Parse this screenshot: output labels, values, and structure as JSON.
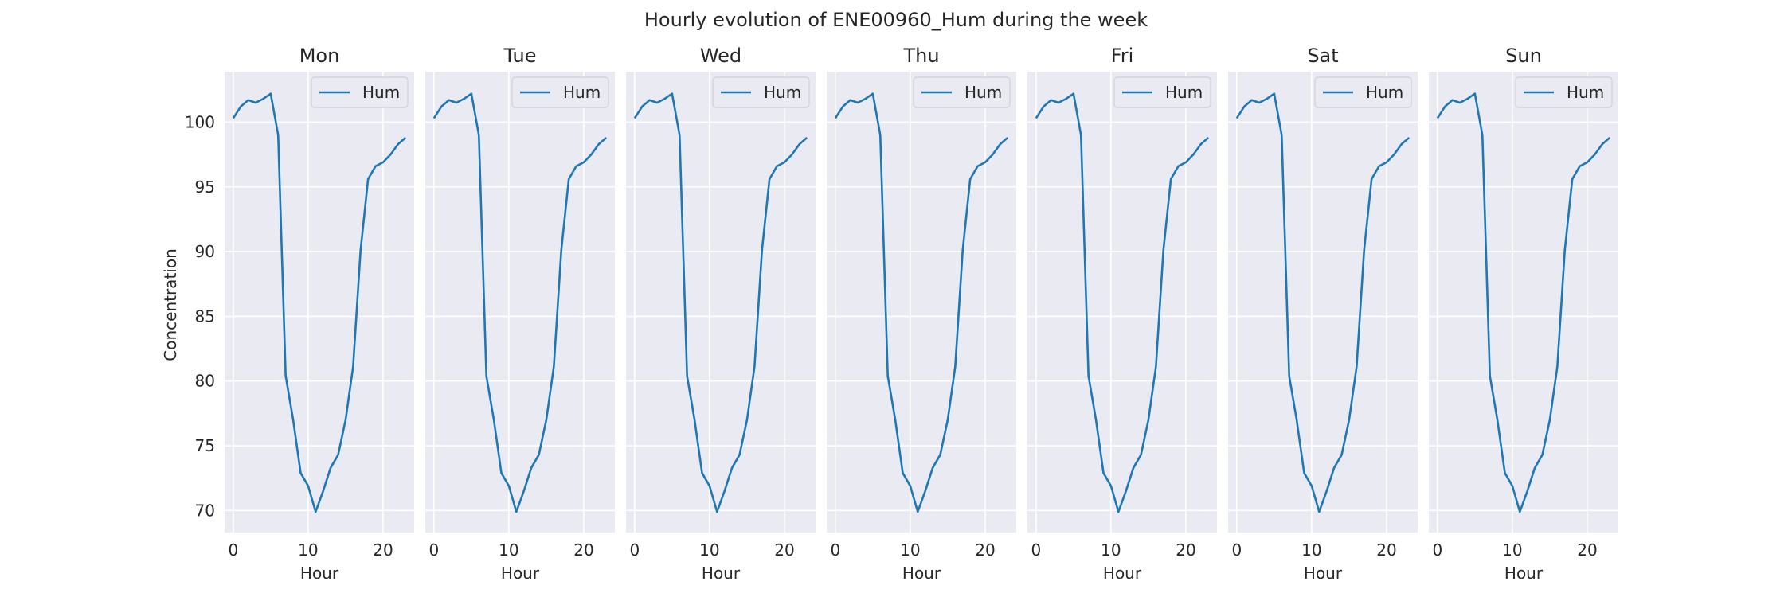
{
  "chart_data": {
    "type": "line",
    "title": "Hourly evolution of ENE00960_Hum during the week",
    "ylabel": "Concentration",
    "xlabel": "Hour",
    "x": [
      0,
      1,
      2,
      3,
      4,
      5,
      6,
      7,
      8,
      9,
      10,
      11,
      12,
      13,
      14,
      15,
      16,
      17,
      18,
      19,
      20,
      21,
      22,
      23
    ],
    "xlim": [
      -1.15,
      24.15
    ],
    "ylim": [
      68.3,
      103.9
    ],
    "xticks": [
      0,
      10,
      20
    ],
    "yticks": [
      70,
      75,
      80,
      85,
      90,
      95,
      100
    ],
    "grid": true,
    "legend_position": "top-right",
    "line_color": "#1f77b4",
    "background_color": "#eaeaf2",
    "panels": [
      {
        "title": "Mon",
        "series": [
          {
            "name": "Hum",
            "values": [
              100.3,
              101.2,
              101.7,
              101.5,
              101.8,
              102.2,
              99.0,
              80.4,
              77.0,
              72.9,
              71.9,
              69.9,
              71.5,
              73.3,
              74.3,
              77.0,
              81.1,
              90.1,
              95.6,
              96.6,
              96.9,
              97.5,
              98.3,
              98.8
            ]
          }
        ]
      },
      {
        "title": "Tue",
        "series": [
          {
            "name": "Hum",
            "values": [
              100.3,
              101.2,
              101.7,
              101.5,
              101.8,
              102.2,
              99.0,
              80.4,
              77.0,
              72.9,
              71.9,
              69.9,
              71.5,
              73.3,
              74.3,
              77.0,
              81.1,
              90.1,
              95.6,
              96.6,
              96.9,
              97.5,
              98.3,
              98.8
            ]
          }
        ]
      },
      {
        "title": "Wed",
        "series": [
          {
            "name": "Hum",
            "values": [
              100.3,
              101.2,
              101.7,
              101.5,
              101.8,
              102.2,
              99.0,
              80.4,
              77.0,
              72.9,
              71.9,
              69.9,
              71.5,
              73.3,
              74.3,
              77.0,
              81.1,
              90.1,
              95.6,
              96.6,
              96.9,
              97.5,
              98.3,
              98.8
            ]
          }
        ]
      },
      {
        "title": "Thu",
        "series": [
          {
            "name": "Hum",
            "values": [
              100.3,
              101.2,
              101.7,
              101.5,
              101.8,
              102.2,
              99.0,
              80.4,
              77.0,
              72.9,
              71.9,
              69.9,
              71.5,
              73.3,
              74.3,
              77.0,
              81.1,
              90.1,
              95.6,
              96.6,
              96.9,
              97.5,
              98.3,
              98.8
            ]
          }
        ]
      },
      {
        "title": "Fri",
        "series": [
          {
            "name": "Hum",
            "values": [
              100.3,
              101.2,
              101.7,
              101.5,
              101.8,
              102.2,
              99.0,
              80.4,
              77.0,
              72.9,
              71.9,
              69.9,
              71.5,
              73.3,
              74.3,
              77.0,
              81.1,
              90.1,
              95.6,
              96.6,
              96.9,
              97.5,
              98.3,
              98.8
            ]
          }
        ]
      },
      {
        "title": "Sat",
        "series": [
          {
            "name": "Hum",
            "values": [
              100.3,
              101.2,
              101.7,
              101.5,
              101.8,
              102.2,
              99.0,
              80.4,
              77.0,
              72.9,
              71.9,
              69.9,
              71.5,
              73.3,
              74.3,
              77.0,
              81.1,
              90.1,
              95.6,
              96.6,
              96.9,
              97.5,
              98.3,
              98.8
            ]
          }
        ]
      },
      {
        "title": "Sun",
        "series": [
          {
            "name": "Hum",
            "values": [
              100.3,
              101.2,
              101.7,
              101.5,
              101.8,
              102.2,
              99.0,
              80.4,
              77.0,
              72.9,
              71.9,
              69.9,
              71.5,
              73.3,
              74.3,
              77.0,
              81.1,
              90.1,
              95.6,
              96.6,
              96.9,
              97.5,
              98.3,
              98.8
            ]
          }
        ]
      }
    ]
  }
}
